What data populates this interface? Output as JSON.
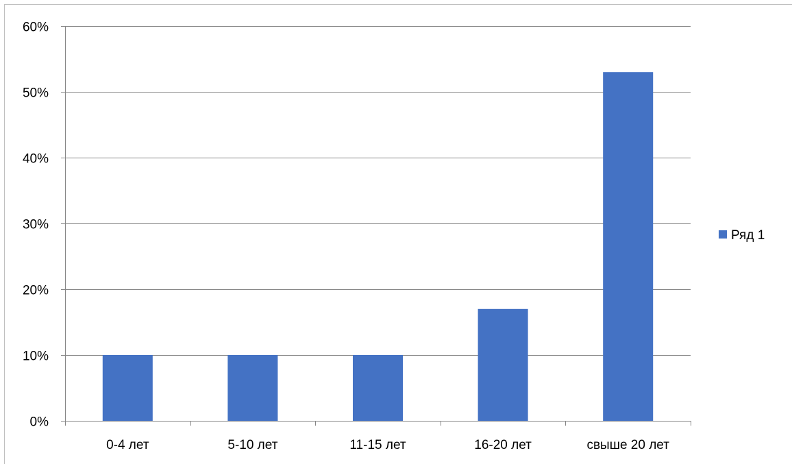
{
  "chart_data": {
    "type": "bar",
    "categories": [
      "0-4 лет",
      "5-10 лет",
      "11-15 лет",
      "16-20 лет",
      "свыше 20 лет"
    ],
    "series": [
      {
        "name": "Ряд 1",
        "values": [
          10,
          10,
          10,
          17,
          53
        ]
      }
    ],
    "ylim": [
      0,
      60
    ],
    "yticks": [
      0,
      10,
      20,
      30,
      40,
      50,
      60
    ],
    "ytick_labels": [
      "0%",
      "10%",
      "20%",
      "30%",
      "40%",
      "50%",
      "60%"
    ],
    "grid": true,
    "legend_position": "right",
    "colors": {
      "series": "#4472C4",
      "grid": "#868686",
      "axis": "#868686"
    }
  }
}
